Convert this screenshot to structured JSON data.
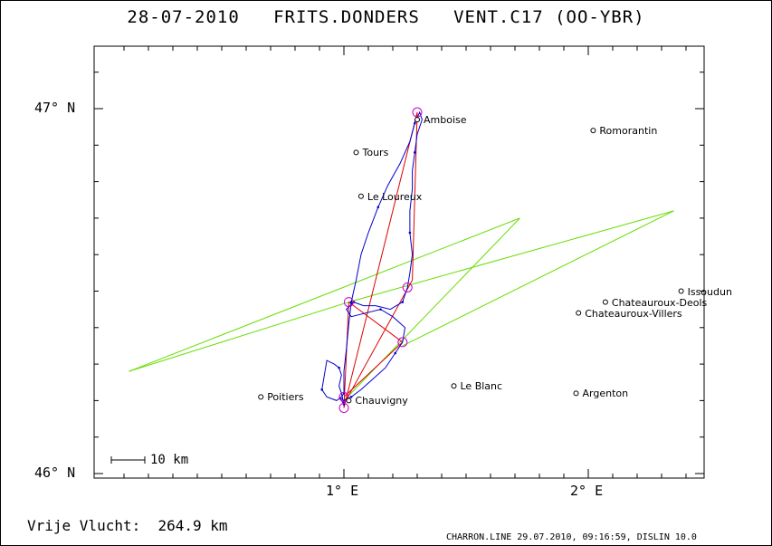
{
  "header": {
    "title": "28-07-2010   FRITS.DONDERS   VENT.C17 (OO-YBR)"
  },
  "axes": {
    "lat_labels": [
      {
        "lat": 47.0,
        "text": "47° N"
      },
      {
        "lat": 46.0,
        "text": "46° N"
      }
    ],
    "lon_labels": [
      {
        "lon": 1.0,
        "text": "1° E"
      },
      {
        "lon": 2.0,
        "text": "2° E"
      }
    ],
    "lon_range": [
      0.0,
      2.5
    ],
    "lat_range": [
      45.98,
      47.17
    ]
  },
  "places": [
    {
      "name": "Amboise",
      "lon": 1.3,
      "lat": 46.97
    },
    {
      "name": "Tours",
      "lon": 1.05,
      "lat": 46.88
    },
    {
      "name": "Le Loureux",
      "lon": 1.07,
      "lat": 46.76
    },
    {
      "name": "Romorantin",
      "lon": 2.02,
      "lat": 46.94
    },
    {
      "name": "Issoudun",
      "lon": 2.38,
      "lat": 46.5
    },
    {
      "name": "Chateauroux-Deols",
      "lon": 2.07,
      "lat": 46.47
    },
    {
      "name": "Chateauroux-Villers",
      "lon": 1.96,
      "lat": 46.44
    },
    {
      "name": "Poitiers",
      "lon": 0.66,
      "lat": 46.21
    },
    {
      "name": "Chauvigny",
      "lon": 1.02,
      "lat": 46.2
    },
    {
      "name": "Le Blanc",
      "lon": 1.45,
      "lat": 46.24
    },
    {
      "name": "Argenton",
      "lon": 1.95,
      "lat": 46.22
    }
  ],
  "turnpoints": [
    {
      "lon": 1.0,
      "lat": 46.18
    },
    {
      "lon": 1.02,
      "lat": 46.47
    },
    {
      "lon": 1.3,
      "lat": 46.99
    },
    {
      "lon": 1.26,
      "lat": 46.51
    },
    {
      "lon": 1.24,
      "lat": 46.36
    },
    {
      "lon": 1.0,
      "lat": 46.21
    }
  ],
  "task_lines": [
    [
      {
        "lon": 1.0,
        "lat": 46.18
      },
      {
        "lon": 1.02,
        "lat": 46.47
      }
    ],
    [
      {
        "lon": 1.0,
        "lat": 46.18
      },
      {
        "lon": 1.3,
        "lat": 46.99
      }
    ],
    [
      {
        "lon": 1.3,
        "lat": 46.99
      },
      {
        "lon": 1.28,
        "lat": 46.53
      }
    ],
    [
      {
        "lon": 1.28,
        "lat": 46.53
      },
      {
        "lon": 1.0,
        "lat": 46.19
      }
    ],
    [
      {
        "lon": 1.02,
        "lat": 46.47
      },
      {
        "lon": 1.24,
        "lat": 46.36
      }
    ],
    [
      {
        "lon": 1.24,
        "lat": 46.36
      },
      {
        "lon": 1.0,
        "lat": 46.21
      }
    ]
  ],
  "sector_lines": [
    [
      {
        "lon": 0.12,
        "lat": 46.28
      },
      {
        "lon": 1.72,
        "lat": 46.7
      }
    ],
    [
      {
        "lon": 0.12,
        "lat": 46.28
      },
      {
        "lon": 1.02,
        "lat": 46.47
      }
    ],
    [
      {
        "lon": 1.72,
        "lat": 46.7
      },
      {
        "lon": 1.0,
        "lat": 46.2
      }
    ],
    [
      {
        "lon": 1.02,
        "lat": 46.47
      },
      {
        "lon": 2.35,
        "lat": 46.72
      }
    ],
    [
      {
        "lon": 2.35,
        "lat": 46.72
      },
      {
        "lon": 1.24,
        "lat": 46.35
      }
    ]
  ],
  "track": [
    {
      "lon": 1.0,
      "lat": 46.19
    },
    {
      "lon": 0.99,
      "lat": 46.22
    },
    {
      "lon": 0.98,
      "lat": 46.24
    },
    {
      "lon": 0.99,
      "lat": 46.27
    },
    {
      "lon": 0.98,
      "lat": 46.29
    },
    {
      "lon": 0.96,
      "lat": 46.3
    },
    {
      "lon": 0.93,
      "lat": 46.31
    },
    {
      "lon": 0.92,
      "lat": 46.27
    },
    {
      "lon": 0.91,
      "lat": 46.23
    },
    {
      "lon": 0.93,
      "lat": 46.21
    },
    {
      "lon": 0.97,
      "lat": 46.2
    },
    {
      "lon": 0.99,
      "lat": 46.21
    },
    {
      "lon": 1.0,
      "lat": 46.22
    },
    {
      "lon": 1.0,
      "lat": 46.28
    },
    {
      "lon": 1.01,
      "lat": 46.34
    },
    {
      "lon": 1.02,
      "lat": 46.41
    },
    {
      "lon": 1.03,
      "lat": 46.47
    },
    {
      "lon": 1.05,
      "lat": 46.53
    },
    {
      "lon": 1.07,
      "lat": 46.6
    },
    {
      "lon": 1.1,
      "lat": 46.66
    },
    {
      "lon": 1.14,
      "lat": 46.73
    },
    {
      "lon": 1.18,
      "lat": 46.79
    },
    {
      "lon": 1.23,
      "lat": 46.85
    },
    {
      "lon": 1.27,
      "lat": 46.91
    },
    {
      "lon": 1.29,
      "lat": 46.96
    },
    {
      "lon": 1.31,
      "lat": 46.99
    },
    {
      "lon": 1.32,
      "lat": 46.97
    },
    {
      "lon": 1.3,
      "lat": 46.93
    },
    {
      "lon": 1.29,
      "lat": 46.88
    },
    {
      "lon": 1.28,
      "lat": 46.83
    },
    {
      "lon": 1.28,
      "lat": 46.78
    },
    {
      "lon": 1.27,
      "lat": 46.72
    },
    {
      "lon": 1.27,
      "lat": 46.66
    },
    {
      "lon": 1.28,
      "lat": 46.6
    },
    {
      "lon": 1.27,
      "lat": 46.55
    },
    {
      "lon": 1.26,
      "lat": 46.51
    },
    {
      "lon": 1.24,
      "lat": 46.47
    },
    {
      "lon": 1.19,
      "lat": 46.45
    },
    {
      "lon": 1.13,
      "lat": 46.46
    },
    {
      "lon": 1.08,
      "lat": 46.46
    },
    {
      "lon": 1.04,
      "lat": 46.47
    },
    {
      "lon": 1.01,
      "lat": 46.45
    },
    {
      "lon": 1.03,
      "lat": 46.43
    },
    {
      "lon": 1.09,
      "lat": 46.44
    },
    {
      "lon": 1.15,
      "lat": 46.45
    },
    {
      "lon": 1.2,
      "lat": 46.43
    },
    {
      "lon": 1.25,
      "lat": 46.4
    },
    {
      "lon": 1.24,
      "lat": 46.36
    },
    {
      "lon": 1.21,
      "lat": 46.33
    },
    {
      "lon": 1.17,
      "lat": 46.29
    },
    {
      "lon": 1.12,
      "lat": 46.26
    },
    {
      "lon": 1.07,
      "lat": 46.23
    },
    {
      "lon": 1.03,
      "lat": 46.21
    },
    {
      "lon": 1.0,
      "lat": 46.2
    },
    {
      "lon": 0.98,
      "lat": 46.21
    },
    {
      "lon": 1.0,
      "lat": 46.19
    }
  ],
  "scale_bar": {
    "text": "10 km"
  },
  "summary": {
    "flight_text": "Vrije Vlucht:  264.9 km"
  },
  "footer": {
    "text": "CHARRON.LINE 29.07.2010, 09:16:59, DISLIN 10.0"
  },
  "colors": {
    "track": "#0000cc",
    "task": "#e00000",
    "sector": "#66dd00",
    "turnpoint": "#cc00cc"
  }
}
